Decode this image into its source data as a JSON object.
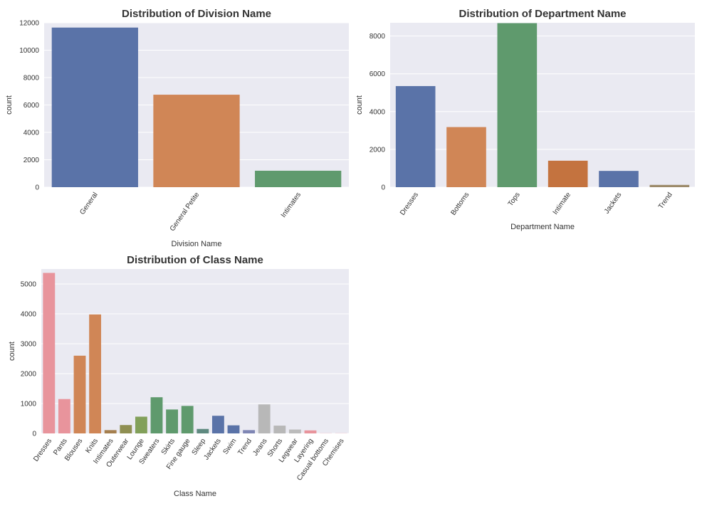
{
  "chart_data": [
    {
      "type": "bar",
      "title": "Distribution of Division Name",
      "xlabel": "Division Name",
      "ylabel": "count",
      "ylim": [
        0,
        12000
      ],
      "yticks": [
        0,
        2000,
        4000,
        6000,
        8000,
        10000,
        12000
      ],
      "grid": true,
      "categories": [
        "General",
        "General Petite",
        "Intimates"
      ],
      "values": [
        11650,
        6750,
        1200
      ],
      "colors": [
        "#5a73a8",
        "#d08656",
        "#5f9a6d"
      ]
    },
    {
      "type": "bar",
      "title": "Distribution of Department Name",
      "xlabel": "Department Name",
      "ylabel": "count",
      "ylim": [
        0,
        8700
      ],
      "yticks": [
        0,
        2000,
        4000,
        6000,
        8000
      ],
      "grid": true,
      "categories": [
        "Dresses",
        "Bottoms",
        "Tops",
        "Intimate",
        "Jackets",
        "Trend"
      ],
      "values": [
        5350,
        3180,
        8680,
        1400,
        860,
        120
      ],
      "colors": [
        "#5a73a8",
        "#d08656",
        "#5f9a6d",
        "#c4733f",
        "#5a73a8",
        "#9c8a6a"
      ]
    },
    {
      "type": "bar",
      "title": "Distribution of Class Name",
      "xlabel": "Class Name",
      "ylabel": "count",
      "ylim": [
        0,
        5500
      ],
      "yticks": [
        0,
        1000,
        2000,
        3000,
        4000,
        5000
      ],
      "grid": true,
      "categories": [
        "Dresses",
        "Pants",
        "Blouses",
        "Knits",
        "Intimates",
        "Outerwear",
        "Lounge",
        "Sweaters",
        "Skirts",
        "Fine gauge",
        "Sleep",
        "Jackets",
        "Swim",
        "Trend",
        "Jeans",
        "Shorts",
        "Legwear",
        "Layering",
        "Casual bottoms",
        "Chemises"
      ],
      "values": [
        5370,
        1150,
        2600,
        3980,
        110,
        280,
        560,
        1210,
        800,
        920,
        150,
        590,
        270,
        110,
        970,
        260,
        130,
        100,
        5,
        5
      ],
      "colors": [
        "#e8949c",
        "#e8949c",
        "#d08656",
        "#d08656",
        "#a57f4e",
        "#8f8f52",
        "#82a05a",
        "#5f9a6d",
        "#5f9a6d",
        "#5f9a6d",
        "#5f8a80",
        "#5a73a8",
        "#5a73a8",
        "#7f86b4",
        "#b8b8b8",
        "#b8b8b8",
        "#bcbcbc",
        "#e8949c",
        "#e8949c",
        "#e8949c"
      ]
    }
  ]
}
